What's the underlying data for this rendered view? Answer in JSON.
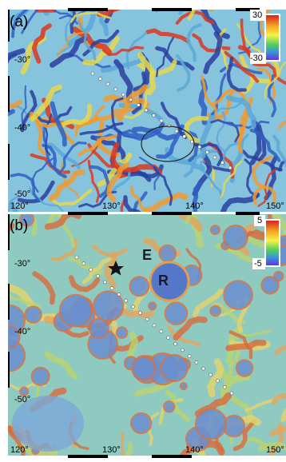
{
  "panels": [
    {
      "label": "(a)",
      "colorbar": {
        "max": "30",
        "min": "-30"
      },
      "lat_labels": [
        "-30°",
        "-40°",
        "-50°"
      ],
      "lon_labels": [
        "120°",
        "130°",
        "140°",
        "150°"
      ]
    },
    {
      "label": "(b)",
      "colorbar": {
        "max": "5",
        "min": "-5"
      },
      "lat_labels": [
        "-30°",
        "-40°",
        "-50°"
      ],
      "lon_labels": [
        "120°",
        "130°",
        "140°",
        "150°"
      ],
      "annotations": [
        "E",
        "R"
      ]
    }
  ]
}
